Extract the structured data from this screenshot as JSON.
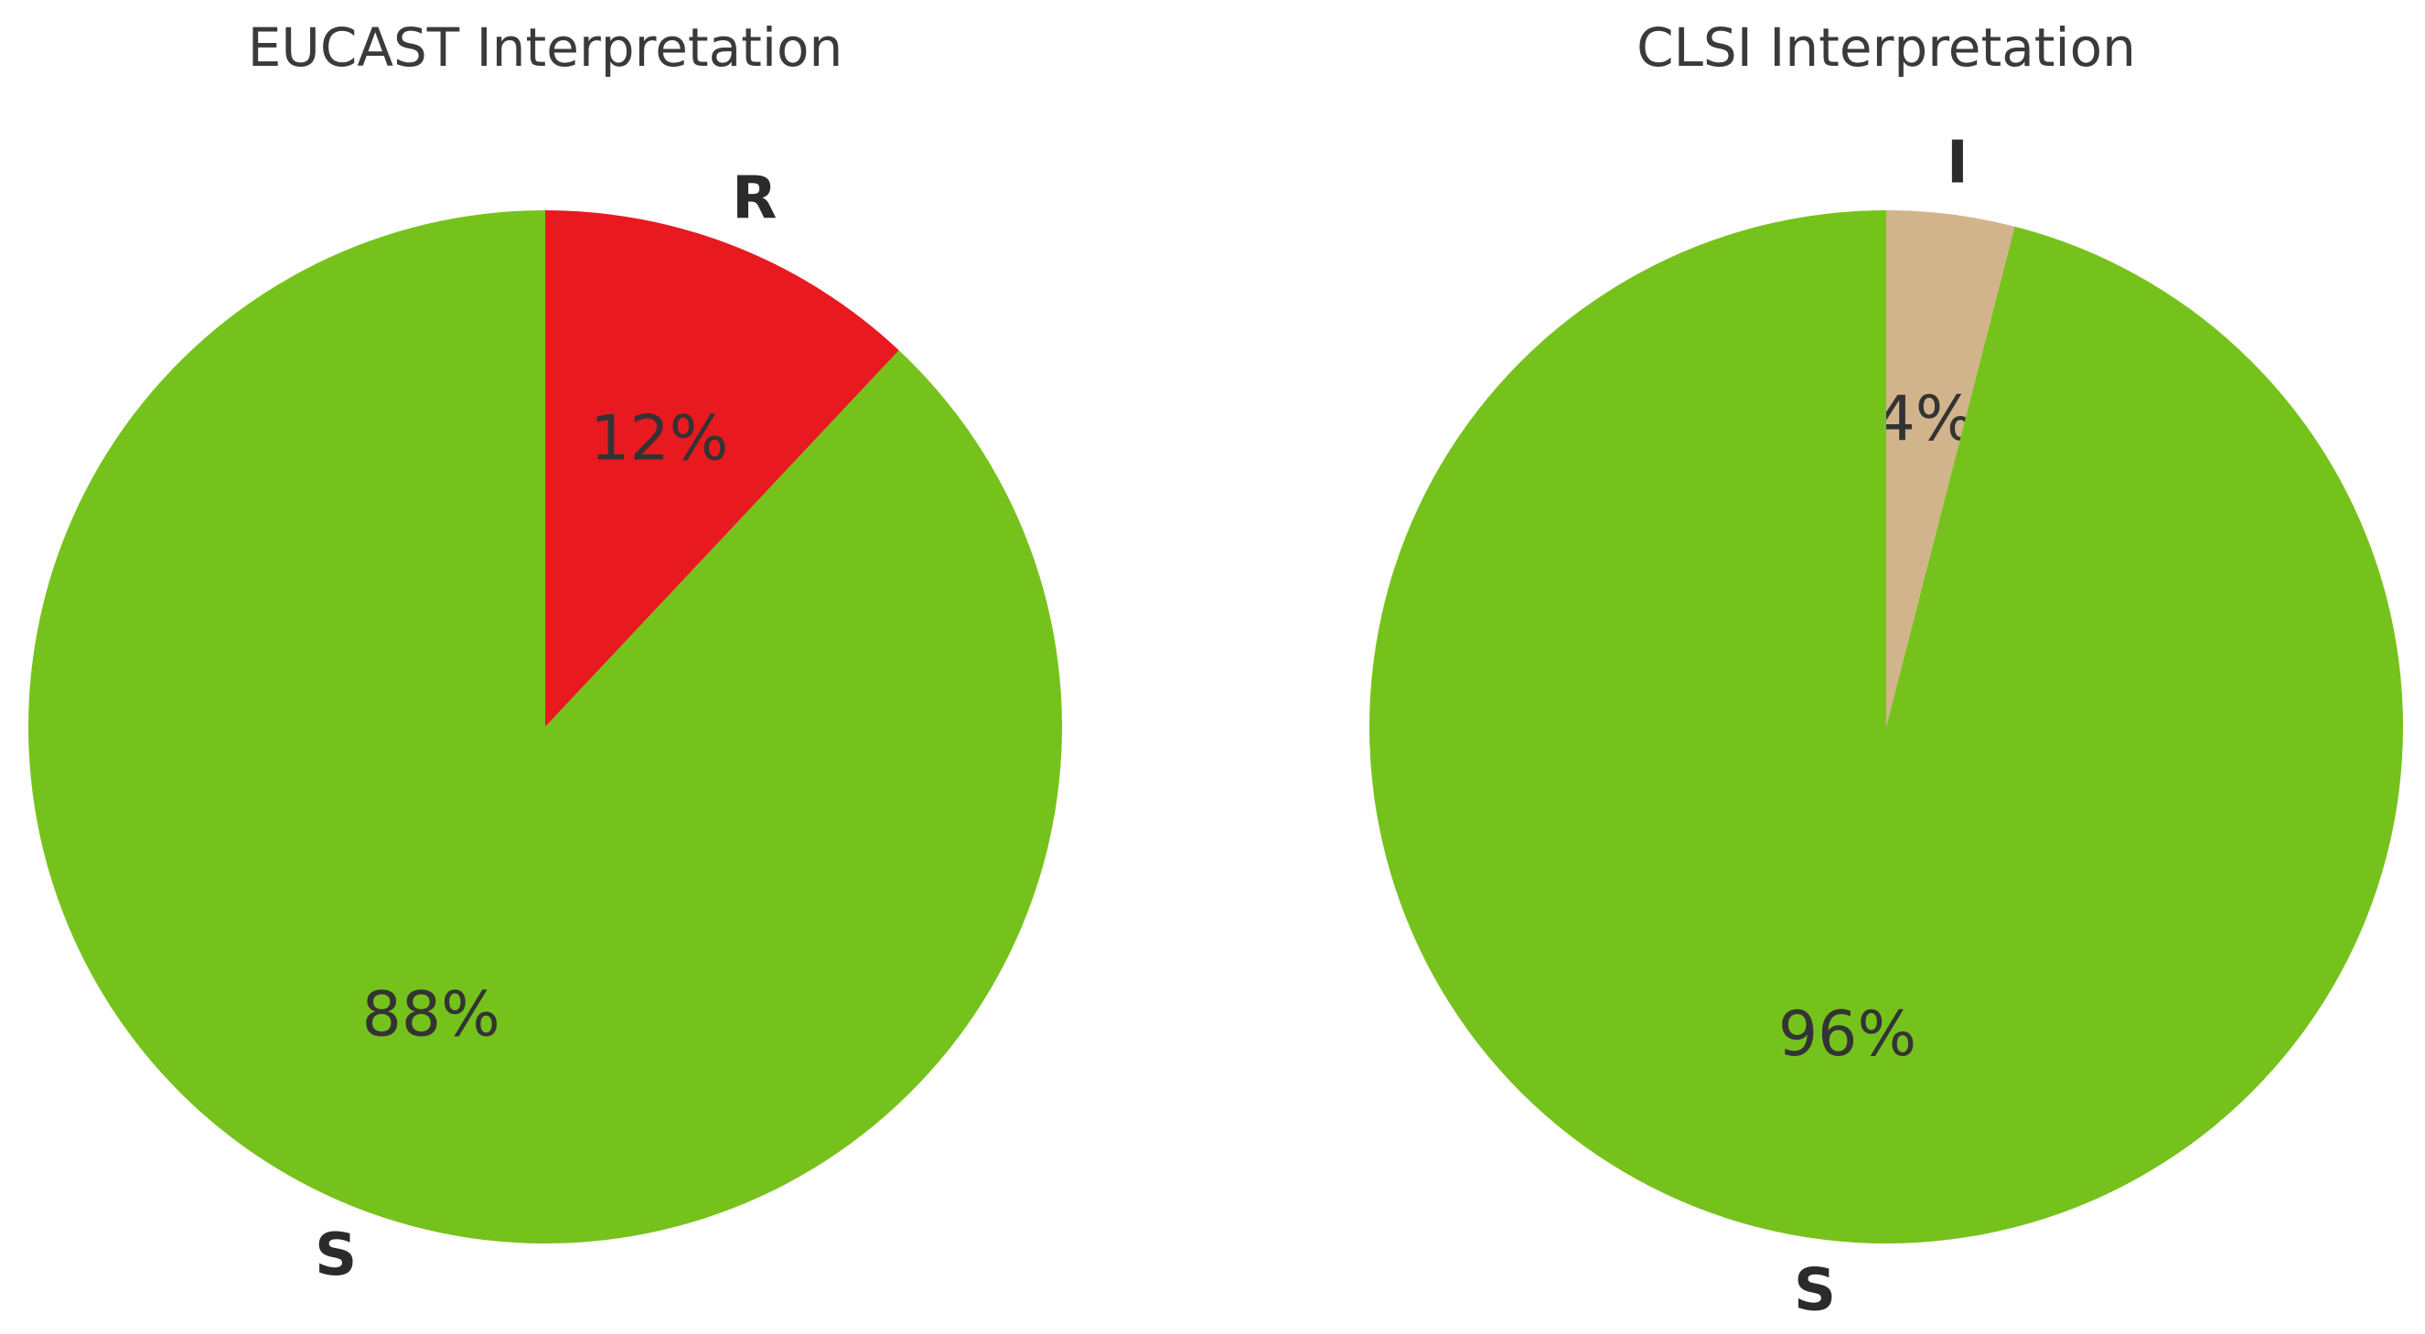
{
  "chart_data": [
    {
      "type": "pie",
      "title": "EUCAST Interpretation",
      "start_angle": 90,
      "counterclock": false,
      "slices": [
        {
          "label": "R",
          "value": 12,
          "pct_label": "12%",
          "color": "#e8191f"
        },
        {
          "label": "S",
          "value": 88,
          "pct_label": "88%",
          "color": "#76c21c"
        }
      ]
    },
    {
      "type": "pie",
      "title": "CLSI Interpretation",
      "start_angle": 90,
      "counterclock": false,
      "slices": [
        {
          "label": "I",
          "value": 4,
          "pct_label": "4%",
          "color": "#d2b48c"
        },
        {
          "label": "S",
          "value": 96,
          "pct_label": "96%",
          "color": "#76c21c"
        }
      ]
    }
  ]
}
